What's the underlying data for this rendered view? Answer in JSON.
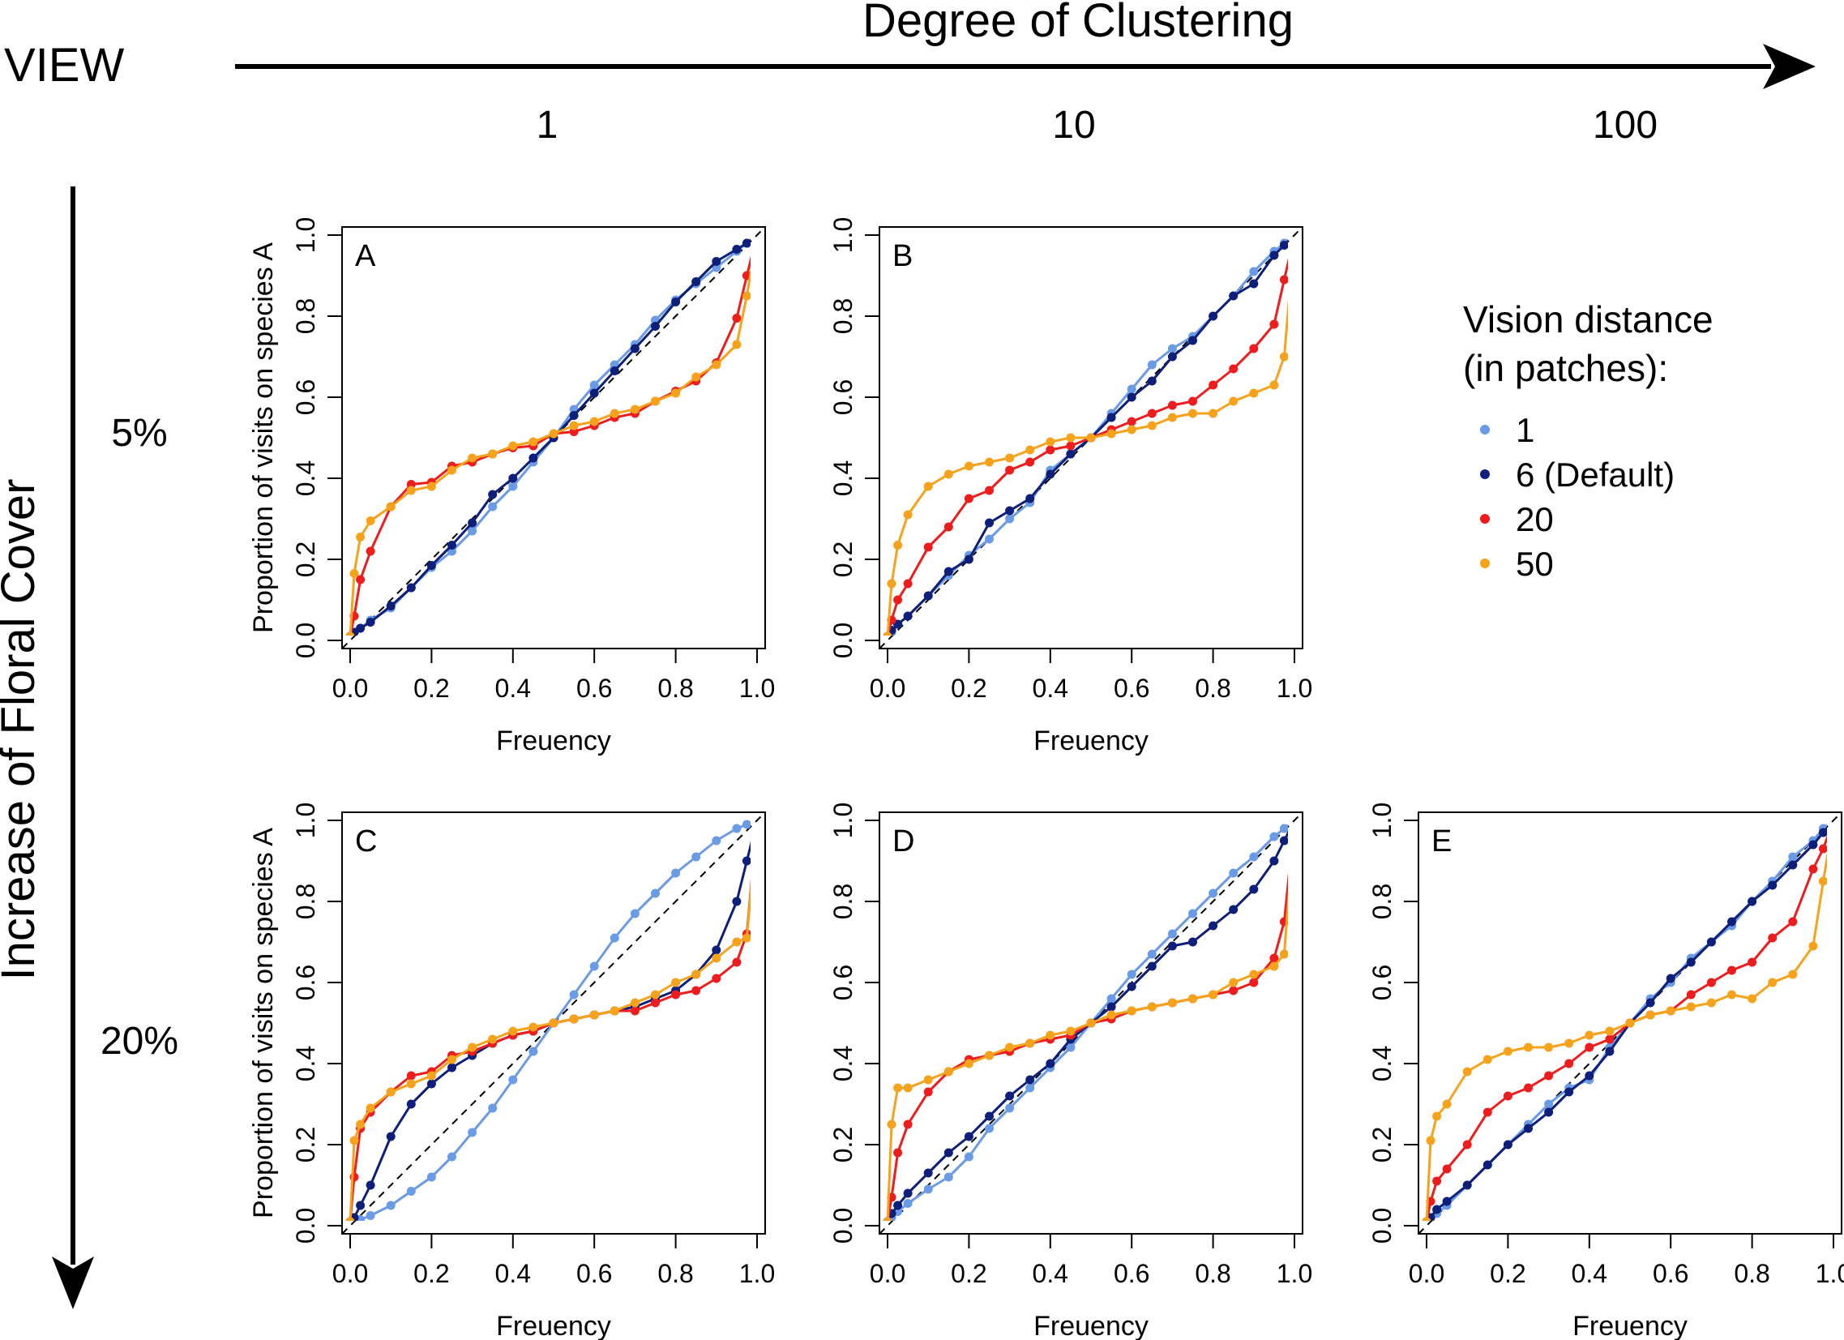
{
  "header": {
    "view_label": "VIEW",
    "x_arrow_label": "Degree of Clustering",
    "y_arrow_label": "Increase of Floral Cover",
    "column_labels": [
      "1",
      "10",
      "100"
    ],
    "row_labels": [
      "5%",
      "20%"
    ]
  },
  "legend": {
    "title_line1": "Vision distance",
    "title_line2": "(in patches):",
    "entries": [
      "1",
      "6 (Default)",
      "20",
      "50"
    ]
  },
  "colors": {
    "v1": "#6a9be6",
    "v6": "#0d1f7a",
    "v20": "#ee1c1c",
    "v50": "#f7a21b",
    "axis": "#000000",
    "diagonal": "#000000"
  },
  "chart_data": [
    {
      "type": "line",
      "panel": "A",
      "xlabel": "Freuency",
      "ylabel": "Proportion of visits on species A",
      "xlim": [
        0,
        1
      ],
      "ylim": [
        0,
        1
      ],
      "xticks": [
        "0.0",
        "0.2",
        "0.4",
        "0.6",
        "0.8",
        "1.0"
      ],
      "yticks": [
        "0.0",
        "0.2",
        "0.4",
        "0.6",
        "0.8",
        "1.0"
      ],
      "x": [
        0,
        0.01,
        0.025,
        0.05,
        0.1,
        0.15,
        0.2,
        0.25,
        0.3,
        0.35,
        0.4,
        0.45,
        0.5,
        0.55,
        0.6,
        0.65,
        0.7,
        0.75,
        0.8,
        0.85,
        0.9,
        0.95,
        0.975,
        1.0
      ],
      "series": [
        {
          "values": [
            0.01,
            0.02,
            0.03,
            0.05,
            0.08,
            0.13,
            0.18,
            0.22,
            0.27,
            0.33,
            0.38,
            0.44,
            0.5,
            0.57,
            0.63,
            0.68,
            0.73,
            0.79,
            0.84,
            0.88,
            0.92,
            0.96,
            0.98,
            1.0
          ]
        },
        {
          "values": [
            0.01,
            0.02,
            0.03,
            0.045,
            0.085,
            0.13,
            0.185,
            0.235,
            0.29,
            0.36,
            0.4,
            0.45,
            0.5,
            0.555,
            0.61,
            0.665,
            0.72,
            0.775,
            0.835,
            0.885,
            0.935,
            0.965,
            0.98,
            1.0
          ]
        },
        {
          "values": [
            0.01,
            0.06,
            0.15,
            0.22,
            0.33,
            0.385,
            0.39,
            0.43,
            0.44,
            0.46,
            0.475,
            0.48,
            0.51,
            0.515,
            0.53,
            0.55,
            0.56,
            0.59,
            0.615,
            0.64,
            0.685,
            0.795,
            0.9,
            1.0
          ]
        },
        {
          "values": [
            0.01,
            0.165,
            0.255,
            0.295,
            0.33,
            0.37,
            0.38,
            0.42,
            0.45,
            0.46,
            0.48,
            0.49,
            0.51,
            0.53,
            0.54,
            0.56,
            0.57,
            0.59,
            0.61,
            0.65,
            0.68,
            0.73,
            0.85,
            1.0
          ]
        }
      ]
    },
    {
      "type": "line",
      "panel": "B",
      "xlabel": "Freuency",
      "ylabel": "",
      "xlim": [
        0,
        1
      ],
      "ylim": [
        0,
        1
      ],
      "xticks": [
        "0.0",
        "0.2",
        "0.4",
        "0.6",
        "0.8",
        "1.0"
      ],
      "yticks": [
        "0.0",
        "0.2",
        "0.4",
        "0.6",
        "0.8",
        "1.0"
      ],
      "x": [
        0,
        0.01,
        0.025,
        0.05,
        0.1,
        0.15,
        0.2,
        0.25,
        0.3,
        0.35,
        0.4,
        0.45,
        0.5,
        0.55,
        0.6,
        0.65,
        0.7,
        0.75,
        0.8,
        0.85,
        0.9,
        0.95,
        0.975,
        1.0
      ],
      "series": [
        {
          "values": [
            0.01,
            0.02,
            0.04,
            0.06,
            0.11,
            0.16,
            0.21,
            0.25,
            0.3,
            0.34,
            0.42,
            0.46,
            0.5,
            0.56,
            0.62,
            0.68,
            0.72,
            0.75,
            0.8,
            0.85,
            0.91,
            0.96,
            0.98,
            1.0
          ]
        },
        {
          "values": [
            0.01,
            0.025,
            0.04,
            0.06,
            0.11,
            0.17,
            0.2,
            0.29,
            0.32,
            0.35,
            0.41,
            0.46,
            0.5,
            0.55,
            0.6,
            0.64,
            0.7,
            0.74,
            0.8,
            0.85,
            0.88,
            0.95,
            0.975,
            1.0
          ]
        },
        {
          "values": [
            0.01,
            0.05,
            0.1,
            0.14,
            0.23,
            0.28,
            0.35,
            0.37,
            0.42,
            0.44,
            0.47,
            0.48,
            0.5,
            0.52,
            0.54,
            0.56,
            0.58,
            0.59,
            0.63,
            0.67,
            0.72,
            0.78,
            0.89,
            1.0
          ]
        },
        {
          "values": [
            0.01,
            0.14,
            0.235,
            0.31,
            0.38,
            0.41,
            0.43,
            0.44,
            0.45,
            0.47,
            0.49,
            0.5,
            0.5,
            0.51,
            0.52,
            0.53,
            0.55,
            0.56,
            0.56,
            0.59,
            0.61,
            0.63,
            0.7,
            1.0
          ]
        }
      ]
    },
    {
      "type": "line",
      "panel": "C",
      "xlabel": "Freuency",
      "ylabel": "Proportion of visits on species A",
      "xlim": [
        0,
        1
      ],
      "ylim": [
        0,
        1
      ],
      "xticks": [
        "0.0",
        "0.2",
        "0.4",
        "0.6",
        "0.8",
        "1.0"
      ],
      "yticks": [
        "0.0",
        "0.2",
        "0.4",
        "0.6",
        "0.8",
        "1.0"
      ],
      "x": [
        0,
        0.01,
        0.025,
        0.05,
        0.1,
        0.15,
        0.2,
        0.25,
        0.3,
        0.35,
        0.4,
        0.45,
        0.5,
        0.55,
        0.6,
        0.65,
        0.7,
        0.75,
        0.8,
        0.85,
        0.9,
        0.95,
        0.975,
        1.0
      ],
      "series": [
        {
          "values": [
            0.01,
            0.01,
            0.015,
            0.025,
            0.05,
            0.085,
            0.12,
            0.17,
            0.23,
            0.29,
            0.36,
            0.43,
            0.5,
            0.57,
            0.64,
            0.71,
            0.77,
            0.82,
            0.87,
            0.91,
            0.95,
            0.98,
            0.99,
            1.0
          ]
        },
        {
          "values": [
            0.01,
            0.02,
            0.05,
            0.1,
            0.22,
            0.3,
            0.35,
            0.39,
            0.42,
            0.45,
            0.47,
            0.48,
            0.5,
            0.51,
            0.52,
            0.53,
            0.54,
            0.56,
            0.58,
            0.62,
            0.68,
            0.8,
            0.9,
            1.0
          ]
        },
        {
          "values": [
            0.01,
            0.12,
            0.24,
            0.28,
            0.33,
            0.37,
            0.38,
            0.42,
            0.43,
            0.45,
            0.47,
            0.48,
            0.5,
            0.51,
            0.52,
            0.53,
            0.53,
            0.55,
            0.57,
            0.58,
            0.61,
            0.65,
            0.72,
            1.0
          ]
        },
        {
          "values": [
            0.01,
            0.21,
            0.25,
            0.29,
            0.33,
            0.35,
            0.37,
            0.41,
            0.44,
            0.46,
            0.48,
            0.49,
            0.5,
            0.51,
            0.52,
            0.53,
            0.55,
            0.57,
            0.6,
            0.62,
            0.66,
            0.7,
            0.71,
            1.0
          ]
        }
      ]
    },
    {
      "type": "line",
      "panel": "D",
      "xlabel": "Freuency",
      "ylabel": "",
      "xlim": [
        0,
        1
      ],
      "ylim": [
        0,
        1
      ],
      "xticks": [
        "0.0",
        "0.2",
        "0.4",
        "0.6",
        "0.8",
        "1.0"
      ],
      "yticks": [
        "0.0",
        "0.2",
        "0.4",
        "0.6",
        "0.8",
        "1.0"
      ],
      "x": [
        0,
        0.01,
        0.025,
        0.05,
        0.1,
        0.15,
        0.2,
        0.25,
        0.3,
        0.35,
        0.4,
        0.45,
        0.5,
        0.55,
        0.6,
        0.65,
        0.7,
        0.75,
        0.8,
        0.85,
        0.9,
        0.95,
        0.975,
        1.0
      ],
      "series": [
        {
          "values": [
            0.01,
            0.02,
            0.035,
            0.055,
            0.09,
            0.12,
            0.17,
            0.24,
            0.29,
            0.34,
            0.39,
            0.44,
            0.5,
            0.56,
            0.62,
            0.67,
            0.72,
            0.77,
            0.82,
            0.87,
            0.91,
            0.96,
            0.98,
            1.0
          ]
        },
        {
          "values": [
            0.01,
            0.03,
            0.05,
            0.08,
            0.13,
            0.18,
            0.22,
            0.27,
            0.32,
            0.36,
            0.4,
            0.46,
            0.5,
            0.54,
            0.59,
            0.64,
            0.69,
            0.7,
            0.74,
            0.78,
            0.83,
            0.9,
            0.95,
            1.0
          ]
        },
        {
          "values": [
            0.01,
            0.07,
            0.18,
            0.25,
            0.33,
            0.38,
            0.41,
            0.42,
            0.43,
            0.45,
            0.46,
            0.47,
            0.5,
            0.51,
            0.53,
            0.54,
            0.55,
            0.56,
            0.57,
            0.58,
            0.6,
            0.66,
            0.75,
            1.0
          ]
        },
        {
          "values": [
            0.01,
            0.25,
            0.34,
            0.34,
            0.36,
            0.38,
            0.4,
            0.42,
            0.44,
            0.45,
            0.47,
            0.48,
            0.5,
            0.52,
            0.53,
            0.54,
            0.55,
            0.56,
            0.57,
            0.6,
            0.62,
            0.64,
            0.67,
            1.0
          ]
        }
      ]
    },
    {
      "type": "line",
      "panel": "E",
      "xlabel": "Freuency",
      "ylabel": "",
      "xlim": [
        0,
        1
      ],
      "ylim": [
        0,
        1
      ],
      "xticks": [
        "0.0",
        "0.2",
        "0.4",
        "0.6",
        "0.8",
        "1.0"
      ],
      "yticks": [
        "0.0",
        "0.2",
        "0.4",
        "0.6",
        "0.8",
        "1.0"
      ],
      "x": [
        0,
        0.01,
        0.025,
        0.05,
        0.1,
        0.15,
        0.2,
        0.25,
        0.3,
        0.35,
        0.4,
        0.45,
        0.5,
        0.55,
        0.6,
        0.65,
        0.7,
        0.75,
        0.8,
        0.85,
        0.9,
        0.95,
        0.975,
        1.0
      ],
      "series": [
        {
          "values": [
            0.01,
            0.02,
            0.03,
            0.05,
            0.1,
            0.15,
            0.2,
            0.25,
            0.3,
            0.34,
            0.36,
            0.44,
            0.5,
            0.56,
            0.6,
            0.66,
            0.7,
            0.74,
            0.8,
            0.85,
            0.91,
            0.95,
            0.98,
            1.0
          ]
        },
        {
          "values": [
            0.01,
            0.02,
            0.04,
            0.06,
            0.1,
            0.15,
            0.2,
            0.24,
            0.28,
            0.33,
            0.37,
            0.43,
            0.5,
            0.55,
            0.61,
            0.65,
            0.7,
            0.75,
            0.8,
            0.84,
            0.89,
            0.94,
            0.97,
            1.0
          ]
        },
        {
          "values": [
            0.01,
            0.06,
            0.11,
            0.14,
            0.2,
            0.28,
            0.32,
            0.34,
            0.37,
            0.4,
            0.44,
            0.46,
            0.5,
            0.52,
            0.53,
            0.57,
            0.6,
            0.63,
            0.65,
            0.71,
            0.75,
            0.88,
            0.93,
            1.0
          ]
        },
        {
          "values": [
            0.01,
            0.21,
            0.27,
            0.3,
            0.38,
            0.41,
            0.43,
            0.44,
            0.44,
            0.45,
            0.47,
            0.48,
            0.5,
            0.52,
            0.53,
            0.54,
            0.55,
            0.57,
            0.56,
            0.6,
            0.62,
            0.69,
            0.85,
            1.0
          ]
        }
      ]
    }
  ]
}
